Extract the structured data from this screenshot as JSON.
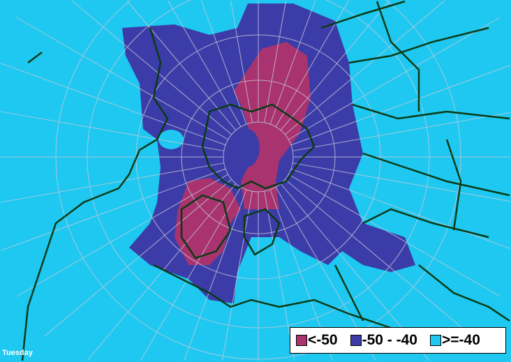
{
  "map": {
    "day_label": "Tuesday",
    "colors": {
      "ocean": "#1ec8f0",
      "below_minus50": "#a8336e",
      "minus50_to_minus40": "#3c3ca8",
      "coast": "#0a3a14",
      "graticule": "#c8c8dc"
    }
  },
  "legend": {
    "items": [
      {
        "label": "<-50",
        "color": "#a8336e"
      },
      {
        "label": "-50 - -40",
        "color": "#3c3ca8"
      },
      {
        "label": ">=-40",
        "color": "#1ec8f0"
      }
    ]
  }
}
